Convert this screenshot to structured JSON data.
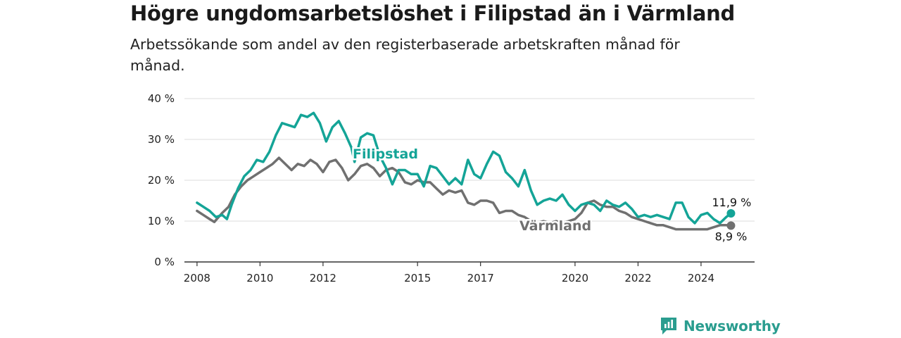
{
  "chart_data": {
    "type": "line",
    "title": "Högre ungdomsarbetslöshet i Filipstad än i Värmland",
    "subtitle": "Arbetssökande som andel av den registerbaserade arbetskraften månad för månad.",
    "y_ticks": [
      "0 %",
      "10 %",
      "20 %",
      "30 %",
      "40 %"
    ],
    "x_ticks": [
      "2008",
      "2010",
      "2012",
      "2015",
      "2017",
      "2020",
      "2022",
      "2024"
    ],
    "ylim": [
      0,
      40
    ],
    "grid": true,
    "series": [
      {
        "name": "Filipstad",
        "color": "#14a497",
        "end_label": "11,9 %",
        "points": [
          [
            2008.0,
            14.5
          ],
          [
            2008.2,
            13.5
          ],
          [
            2008.4,
            12.5
          ],
          [
            2008.6,
            11.0
          ],
          [
            2008.8,
            11.5
          ],
          [
            2008.95,
            10.5
          ],
          [
            2009.1,
            14.0
          ],
          [
            2009.3,
            18.0
          ],
          [
            2009.5,
            21.0
          ],
          [
            2009.7,
            22.5
          ],
          [
            2009.9,
            25.0
          ],
          [
            2010.1,
            24.5
          ],
          [
            2010.3,
            27.0
          ],
          [
            2010.5,
            31.0
          ],
          [
            2010.7,
            34.0
          ],
          [
            2010.9,
            33.5
          ],
          [
            2011.1,
            33.0
          ],
          [
            2011.3,
            36.0
          ],
          [
            2011.5,
            35.5
          ],
          [
            2011.7,
            36.5
          ],
          [
            2011.9,
            34.0
          ],
          [
            2012.1,
            29.5
          ],
          [
            2012.3,
            33.0
          ],
          [
            2012.5,
            34.5
          ],
          [
            2012.7,
            31.5
          ],
          [
            2012.9,
            28.0
          ],
          [
            2013.0,
            24.5
          ],
          [
            2013.2,
            30.5
          ],
          [
            2013.4,
            31.5
          ],
          [
            2013.6,
            31.0
          ],
          [
            2013.8,
            26.0
          ],
          [
            2014.0,
            23.0
          ],
          [
            2014.2,
            19.0
          ],
          [
            2014.4,
            22.5
          ],
          [
            2014.6,
            22.5
          ],
          [
            2014.8,
            21.5
          ],
          [
            2015.0,
            21.5
          ],
          [
            2015.2,
            18.5
          ],
          [
            2015.4,
            23.5
          ],
          [
            2015.6,
            23.0
          ],
          [
            2015.8,
            21.0
          ],
          [
            2016.0,
            19.0
          ],
          [
            2016.2,
            20.5
          ],
          [
            2016.4,
            19.0
          ],
          [
            2016.6,
            25.0
          ],
          [
            2016.8,
            21.5
          ],
          [
            2017.0,
            20.5
          ],
          [
            2017.2,
            24.0
          ],
          [
            2017.4,
            27.0
          ],
          [
            2017.6,
            26.0
          ],
          [
            2017.8,
            22.0
          ],
          [
            2018.0,
            20.5
          ],
          [
            2018.2,
            18.5
          ],
          [
            2018.4,
            22.5
          ],
          [
            2018.6,
            17.5
          ],
          [
            2018.8,
            14.0
          ],
          [
            2019.0,
            15.0
          ],
          [
            2019.2,
            15.5
          ],
          [
            2019.4,
            15.0
          ],
          [
            2019.6,
            16.5
          ],
          [
            2019.8,
            14.0
          ],
          [
            2020.0,
            12.5
          ],
          [
            2020.2,
            14.0
          ],
          [
            2020.4,
            14.5
          ],
          [
            2020.6,
            14.0
          ],
          [
            2020.8,
            12.5
          ],
          [
            2021.0,
            15.0
          ],
          [
            2021.2,
            14.0
          ],
          [
            2021.4,
            13.5
          ],
          [
            2021.6,
            14.5
          ],
          [
            2021.8,
            13.0
          ],
          [
            2022.0,
            11.0
          ],
          [
            2022.2,
            11.5
          ],
          [
            2022.4,
            11.0
          ],
          [
            2022.6,
            11.5
          ],
          [
            2022.8,
            11.0
          ],
          [
            2023.0,
            10.5
          ],
          [
            2023.2,
            14.5
          ],
          [
            2023.4,
            14.5
          ],
          [
            2023.6,
            11.0
          ],
          [
            2023.8,
            9.5
          ],
          [
            2024.0,
            11.5
          ],
          [
            2024.2,
            12.0
          ],
          [
            2024.4,
            10.5
          ],
          [
            2024.6,
            9.5
          ],
          [
            2024.8,
            11.0
          ],
          [
            2024.95,
            11.9
          ]
        ]
      },
      {
        "name": "Värmland",
        "color": "#707070",
        "end_label": "8,9 %",
        "points": [
          [
            2008.0,
            12.5
          ],
          [
            2008.2,
            11.5
          ],
          [
            2008.4,
            10.5
          ],
          [
            2008.55,
            9.8
          ],
          [
            2008.8,
            12.0
          ],
          [
            2009.0,
            13.5
          ],
          [
            2009.2,
            16.5
          ],
          [
            2009.4,
            18.5
          ],
          [
            2009.6,
            20.0
          ],
          [
            2009.8,
            21.0
          ],
          [
            2010.0,
            22.0
          ],
          [
            2010.2,
            23.0
          ],
          [
            2010.4,
            24.0
          ],
          [
            2010.6,
            25.5
          ],
          [
            2010.8,
            24.0
          ],
          [
            2011.0,
            22.5
          ],
          [
            2011.2,
            24.0
          ],
          [
            2011.4,
            23.5
          ],
          [
            2011.6,
            25.0
          ],
          [
            2011.8,
            24.0
          ],
          [
            2012.0,
            22.0
          ],
          [
            2012.2,
            24.5
          ],
          [
            2012.4,
            25.0
          ],
          [
            2012.6,
            23.0
          ],
          [
            2012.8,
            20.0
          ],
          [
            2013.0,
            21.5
          ],
          [
            2013.2,
            23.5
          ],
          [
            2013.4,
            24.0
          ],
          [
            2013.6,
            23.0
          ],
          [
            2013.8,
            21.0
          ],
          [
            2014.0,
            22.5
          ],
          [
            2014.2,
            23.0
          ],
          [
            2014.4,
            22.0
          ],
          [
            2014.6,
            19.5
          ],
          [
            2014.8,
            19.0
          ],
          [
            2015.0,
            20.0
          ],
          [
            2015.2,
            19.5
          ],
          [
            2015.4,
            19.5
          ],
          [
            2015.6,
            18.0
          ],
          [
            2015.8,
            16.5
          ],
          [
            2016.0,
            17.5
          ],
          [
            2016.2,
            17.0
          ],
          [
            2016.4,
            17.5
          ],
          [
            2016.6,
            14.5
          ],
          [
            2016.8,
            14.0
          ],
          [
            2017.0,
            15.0
          ],
          [
            2017.2,
            15.0
          ],
          [
            2017.4,
            14.5
          ],
          [
            2017.6,
            12.0
          ],
          [
            2017.8,
            12.5
          ],
          [
            2018.0,
            12.5
          ],
          [
            2018.2,
            11.5
          ],
          [
            2018.4,
            11.0
          ],
          [
            2018.6,
            10.0
          ],
          [
            2018.8,
            9.5
          ],
          [
            2019.0,
            10.0
          ],
          [
            2019.2,
            9.5
          ],
          [
            2019.4,
            10.0
          ],
          [
            2019.6,
            9.5
          ],
          [
            2019.8,
            10.0
          ],
          [
            2020.0,
            10.5
          ],
          [
            2020.2,
            12.0
          ],
          [
            2020.4,
            14.5
          ],
          [
            2020.6,
            15.0
          ],
          [
            2020.8,
            14.0
          ],
          [
            2021.0,
            13.5
          ],
          [
            2021.2,
            13.5
          ],
          [
            2021.4,
            12.5
          ],
          [
            2021.6,
            12.0
          ],
          [
            2021.8,
            11.0
          ],
          [
            2022.0,
            10.5
          ],
          [
            2022.2,
            10.0
          ],
          [
            2022.4,
            9.5
          ],
          [
            2022.6,
            9.0
          ],
          [
            2022.8,
            9.0
          ],
          [
            2023.0,
            8.5
          ],
          [
            2023.2,
            8.0
          ],
          [
            2023.4,
            8.0
          ],
          [
            2023.6,
            8.0
          ],
          [
            2023.8,
            8.0
          ],
          [
            2024.0,
            8.0
          ],
          [
            2024.2,
            8.0
          ],
          [
            2024.4,
            8.5
          ],
          [
            2024.6,
            9.0
          ],
          [
            2024.8,
            9.0
          ],
          [
            2024.95,
            8.9
          ]
        ]
      }
    ]
  },
  "brand": {
    "name": "Newsworthy",
    "icon": "newsworthy-logo-icon",
    "color": "#2a9d8f"
  }
}
